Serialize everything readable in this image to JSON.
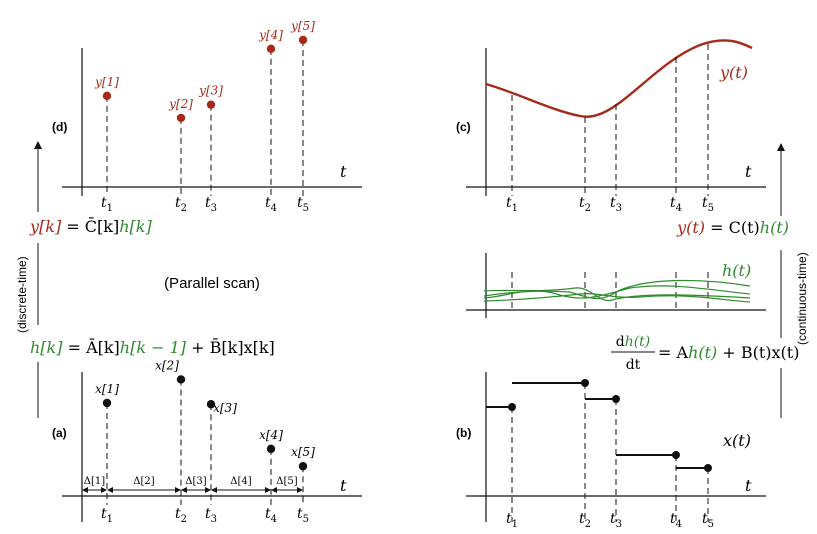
{
  "panels": {
    "a": {
      "label": "(a)"
    },
    "b": {
      "label": "(b)"
    },
    "c": {
      "label": "(c)"
    },
    "d": {
      "label": "(d)"
    }
  },
  "axis_var": "t",
  "time_ticks": [
    {
      "base": "t",
      "sub": "1"
    },
    {
      "base": "t",
      "sub": "2"
    },
    {
      "base": "t",
      "sub": "3"
    },
    {
      "base": "t",
      "sub": "4"
    },
    {
      "base": "t",
      "sub": "5"
    }
  ],
  "panel_d": {
    "samples": [
      "y[1]",
      "y[2]",
      "y[3]",
      "y[4]",
      "y[5]"
    ],
    "values": [
      0.62,
      0.47,
      0.56,
      0.94,
      1.0
    ]
  },
  "panel_a": {
    "samples": [
      "x[1]",
      "x[2]",
      "x[3]",
      "x[4]",
      "x[5]"
    ],
    "values": [
      0.75,
      0.94,
      0.74,
      0.38,
      0.24
    ],
    "deltas": [
      "Δ[1]",
      "Δ[2]",
      "Δ[3]",
      "Δ[4]",
      "Δ[5]"
    ]
  },
  "panel_c": {
    "curve_label": "y(t)"
  },
  "panel_h": {
    "curve_label": "h(t)"
  },
  "panel_b": {
    "curve_label": "x(t)"
  },
  "equations": {
    "discrete_out": {
      "lhs": "y[k]",
      "eq": " = ",
      "mat": "C̄[k]",
      "state": "h[k]"
    },
    "discrete_state": {
      "lhs": "h[k]",
      "eq": " = ",
      "a": "Ā[k]",
      "prev": "h[k − 1]",
      "plus": " + ",
      "b": "B̄[k]x[k]"
    },
    "continuous_out": {
      "lhs": "y(t)",
      "eq": " = ",
      "mat": "C(t)",
      "state": "h(t)"
    },
    "continuous_state": {
      "num_d": "d",
      "num_h": "h(t)",
      "den": "dt",
      "eq": " = ",
      "a": "A",
      "h": "h(t)",
      "rest": " + B(t)x(t)"
    }
  },
  "parallel_scan": "(Parallel scan)",
  "side_labels": {
    "left": "(discrete-time)",
    "right": "(continuous-time)"
  },
  "colors": {
    "red": "#a52a1a",
    "green": "#2e8b2e",
    "black": "#111111"
  }
}
